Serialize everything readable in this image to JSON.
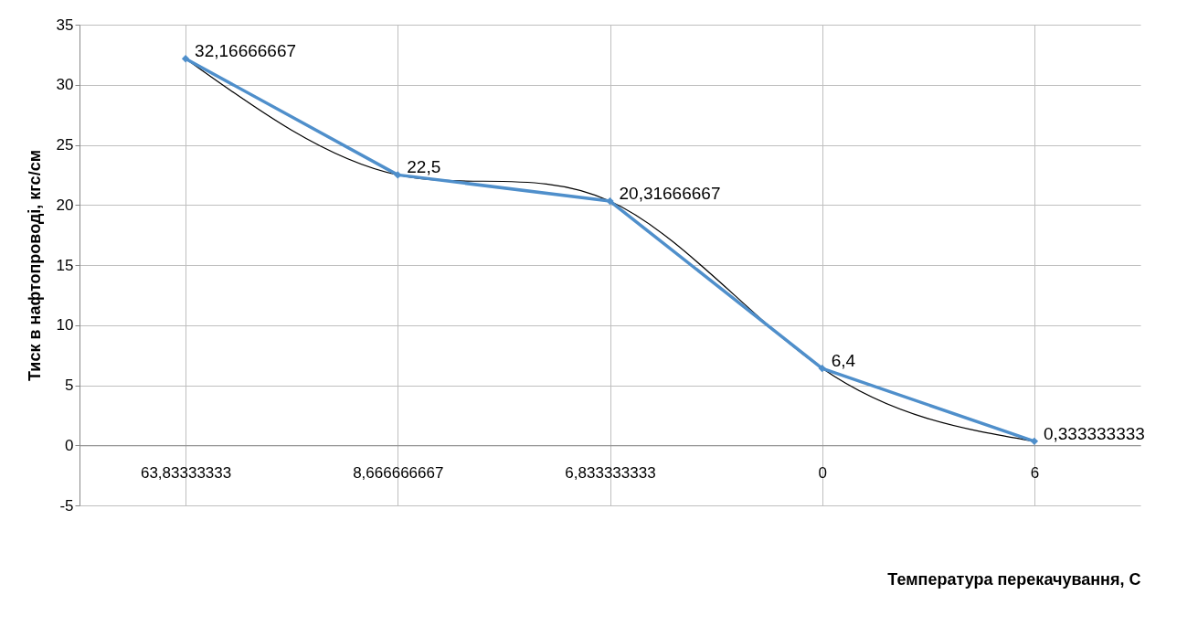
{
  "chart_data": {
    "type": "line",
    "xlabel": "Температура перекачування, С",
    "ylabel": "Тиск в нафтопроводі, кгс/см",
    "categories": [
      "63,83333333",
      "8,666666667",
      "6,833333333",
      "0",
      "6"
    ],
    "ylim": [
      -5,
      35
    ],
    "yticks": [
      -5,
      0,
      5,
      10,
      15,
      20,
      25,
      30,
      35
    ],
    "grid": true,
    "series": [
      {
        "color": "#4f8fcb",
        "marker": "diamond",
        "values": [
          32.16666667,
          22.5,
          20.31666667,
          6.4,
          0.333333333
        ],
        "value_labels": [
          "32,16666667",
          "22,5",
          "20,31666667",
          "6,4",
          "0,333333333"
        ]
      },
      {
        "color": "#000000",
        "marker": "none",
        "values": [
          32.17,
          22.5,
          20.32,
          6.4,
          0.33
        ]
      }
    ]
  }
}
